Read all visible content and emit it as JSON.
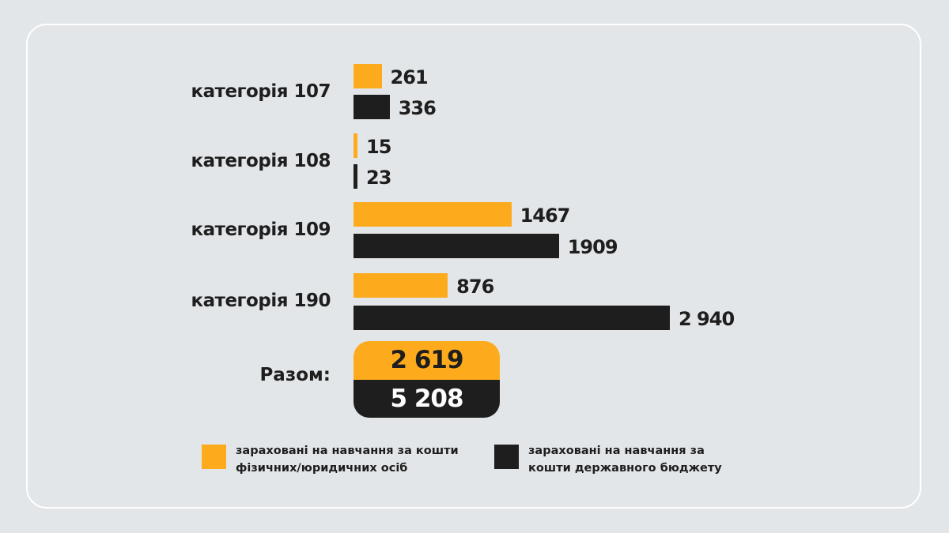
{
  "colors": {
    "private": "#fdab1d",
    "budget": "#1e1e1e",
    "background": "#e3e6e8"
  },
  "chart_data": {
    "type": "bar",
    "orientation": "horizontal",
    "categories": [
      "категорія 107",
      "категорія 108",
      "категорія 109",
      "категорія 190"
    ],
    "series": [
      {
        "name": "зараховані на навчання за кошти фізичних/юридичних осіб",
        "values": [
          261,
          15,
          1467,
          876
        ],
        "labels": [
          "261",
          "15",
          "1467",
          "876"
        ]
      },
      {
        "name": "зараховані на навчання за кошти державного бюджету",
        "values": [
          336,
          23,
          1909,
          2940
        ],
        "labels": [
          "336",
          "23",
          "1909",
          "2 940"
        ]
      }
    ],
    "totals": {
      "label": "Разом:",
      "private": "2 619",
      "budget": "5 208"
    },
    "legend": {
      "private": [
        "зараховані на навчання за кошти",
        "фізичних/юридичних осіб"
      ],
      "budget": [
        "зараховані на навчання за",
        "кошти державного бюджету"
      ]
    },
    "grid": false,
    "legend_position": "bottom"
  }
}
